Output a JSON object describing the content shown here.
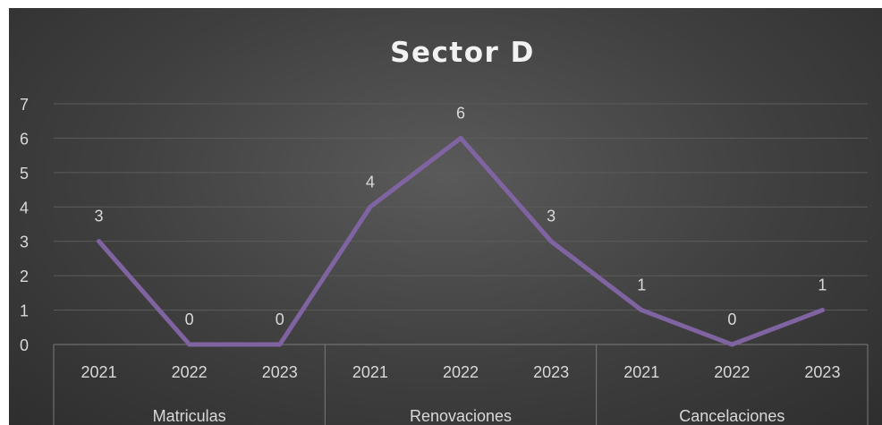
{
  "chart_data": {
    "type": "line",
    "title": "Sector D",
    "groups": [
      {
        "name": "Matriculas",
        "years": [
          "2021",
          "2022",
          "2023"
        ],
        "values": [
          3,
          0,
          0
        ]
      },
      {
        "name": "Renovaciones",
        "years": [
          "2021",
          "2022",
          "2023"
        ],
        "values": [
          4,
          6,
          3
        ]
      },
      {
        "name": "Cancelaciones",
        "years": [
          "2021",
          "2022",
          "2023"
        ],
        "values": [
          1,
          0,
          1
        ]
      }
    ],
    "yticks": [
      "0",
      "1",
      "2",
      "3",
      "4",
      "5",
      "6",
      "7"
    ],
    "ylim": [
      0,
      7
    ],
    "grid": true,
    "line_color": "#8064a2",
    "background_color": "#404040",
    "data_labels": [
      "3",
      "0",
      "0",
      "4",
      "6",
      "3",
      "1",
      "0",
      "1"
    ]
  }
}
